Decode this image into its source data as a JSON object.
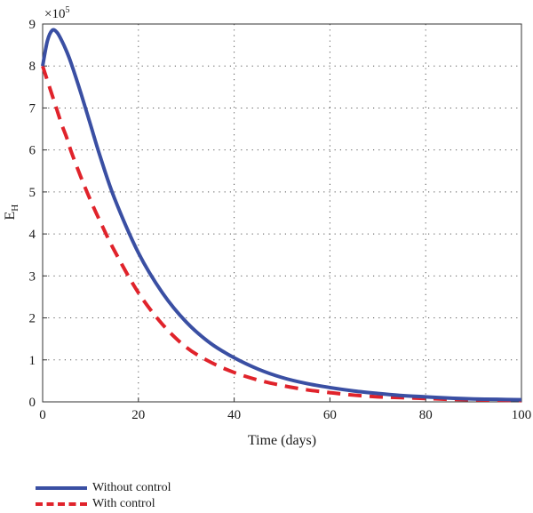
{
  "chart_data": {
    "type": "line",
    "xlabel": "Time (days)",
    "ylabel": "E",
    "ylabel_subscript": "H",
    "y_multiplier_base": "×10",
    "y_multiplier_exp": "5",
    "xlim": [
      0,
      100
    ],
    "ylim": [
      0,
      9
    ],
    "x_ticks": [
      0,
      20,
      40,
      60,
      80,
      100
    ],
    "y_ticks": [
      0,
      1,
      2,
      3,
      4,
      5,
      6,
      7,
      8,
      9
    ],
    "grid": true,
    "legend_position": "bottom-left",
    "x": [
      0,
      1,
      2,
      3,
      4,
      5,
      6,
      8,
      10,
      12,
      15,
      20,
      25,
      30,
      35,
      40,
      45,
      50,
      55,
      60,
      65,
      70,
      75,
      80,
      85,
      90,
      95,
      100
    ],
    "series": [
      {
        "name": "Without control",
        "color": "#3a4fa3",
        "style": "solid",
        "values": [
          8.0,
          8.6,
          8.85,
          8.8,
          8.6,
          8.35,
          8.05,
          7.35,
          6.6,
          5.85,
          4.85,
          3.55,
          2.6,
          1.9,
          1.4,
          1.05,
          0.78,
          0.58,
          0.44,
          0.34,
          0.26,
          0.2,
          0.15,
          0.12,
          0.09,
          0.07,
          0.06,
          0.05
        ]
      },
      {
        "name": "With control",
        "color": "#e0232b",
        "style": "dashed",
        "values": [
          8.0,
          7.65,
          7.3,
          6.95,
          6.6,
          6.3,
          5.95,
          5.35,
          4.8,
          4.3,
          3.6,
          2.6,
          1.85,
          1.3,
          0.95,
          0.7,
          0.52,
          0.39,
          0.29,
          0.22,
          0.16,
          0.12,
          0.1,
          0.08,
          0.06,
          0.05,
          0.04,
          0.03
        ]
      }
    ]
  }
}
